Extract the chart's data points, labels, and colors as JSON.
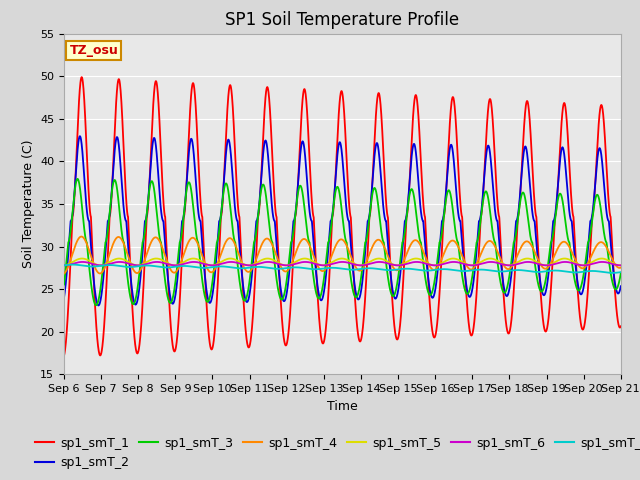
{
  "title": "SP1 Soil Temperature Profile",
  "xlabel": "Time",
  "ylabel": "Soil Temperature (C)",
  "ylim": [
    15,
    55
  ],
  "x_tick_labels": [
    "Sep 6",
    "Sep 7",
    "Sep 8",
    "Sep 9",
    "Sep 10",
    "Sep 11",
    "Sep 12",
    "Sep 13",
    "Sep 14",
    "Sep 15",
    "Sep 16",
    "Sep 17",
    "Sep 18",
    "Sep 19",
    "Sep 20",
    "Sep 21"
  ],
  "tz_label": "TZ_osu",
  "series_colors": {
    "sp1_smT_1": "#ff0000",
    "sp1_smT_2": "#0000dd",
    "sp1_smT_3": "#00cc00",
    "sp1_smT_4": "#ff8800",
    "sp1_smT_5": "#dddd00",
    "sp1_smT_6": "#cc00cc",
    "sp1_smT_7": "#00cccc"
  },
  "fig_bg_color": "#d8d8d8",
  "plot_bg_color": "#e8e8e8",
  "title_fontsize": 12,
  "axis_label_fontsize": 9,
  "tick_fontsize": 8,
  "legend_fontsize": 9
}
